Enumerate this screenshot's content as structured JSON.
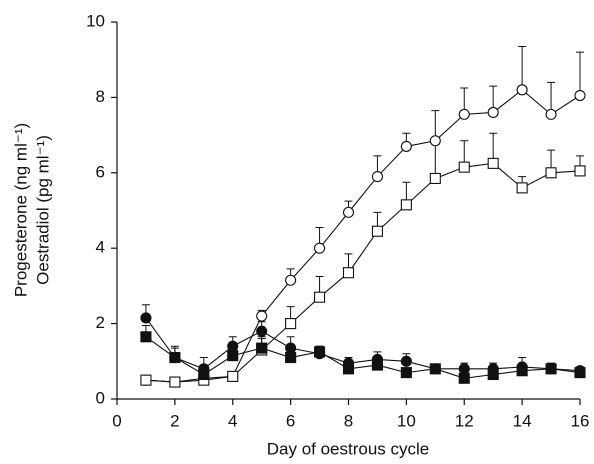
{
  "chart_data": {
    "type": "line",
    "x_label": "Day of oestrous cycle",
    "y_label": [
      "Progesterone (ng ml⁻¹)",
      "Oestradiol (pg ml⁻¹)"
    ],
    "x": [
      1,
      2,
      3,
      4,
      5,
      6,
      7,
      8,
      9,
      10,
      11,
      12,
      13,
      14,
      15,
      16
    ],
    "xlim": [
      0,
      16
    ],
    "xticks": [
      0,
      2,
      4,
      6,
      8,
      10,
      12,
      14,
      16
    ],
    "ylim": [
      0,
      10
    ],
    "yticks": [
      0,
      2,
      4,
      6,
      8,
      10
    ],
    "color": "#111111",
    "series": [
      {
        "marker": "circle",
        "filled": false,
        "values": [
          0.5,
          0.45,
          0.55,
          0.6,
          2.2,
          3.15,
          4.0,
          4.95,
          5.9,
          6.7,
          6.85,
          7.55,
          7.6,
          8.2,
          7.55,
          8.05
        ],
        "errors": [
          0.05,
          0.05,
          0.05,
          0.1,
          0.15,
          0.3,
          0.55,
          0.3,
          0.55,
          0.35,
          0.8,
          0.7,
          0.7,
          1.15,
          0.85,
          1.15
        ]
      },
      {
        "marker": "square",
        "filled": false,
        "values": [
          0.5,
          0.45,
          0.5,
          0.6,
          1.3,
          2.0,
          2.7,
          3.35,
          4.45,
          5.15,
          5.85,
          6.15,
          6.25,
          5.6,
          6.0,
          6.05
        ],
        "errors": [
          0.05,
          0.05,
          0.05,
          0.1,
          0.3,
          0.45,
          0.55,
          0.5,
          0.5,
          0.6,
          0.9,
          0.7,
          0.8,
          0.3,
          0.6,
          0.4
        ]
      },
      {
        "marker": "circle",
        "filled": true,
        "values": [
          2.15,
          1.1,
          0.8,
          1.4,
          1.8,
          1.35,
          1.2,
          0.95,
          1.05,
          1.0,
          0.8,
          0.8,
          0.8,
          0.85,
          0.8,
          0.75
        ],
        "errors": [
          0.35,
          0.3,
          0.3,
          0.25,
          0.25,
          0.3,
          0.2,
          0.15,
          0.2,
          0.2,
          0.1,
          0.15,
          0.15,
          0.25,
          0.15,
          0.1
        ]
      },
      {
        "marker": "square",
        "filled": true,
        "values": [
          1.65,
          1.1,
          0.65,
          1.15,
          1.35,
          1.1,
          1.25,
          0.8,
          0.9,
          0.7,
          0.8,
          0.55,
          0.65,
          0.75,
          0.8,
          0.7
        ],
        "errors": [
          0.3,
          0.25,
          0.25,
          0.3,
          0.3,
          0.2,
          0.15,
          0.15,
          0.15,
          0.1,
          0.1,
          0.1,
          0.1,
          0.15,
          0.1,
          0.1
        ]
      }
    ]
  }
}
